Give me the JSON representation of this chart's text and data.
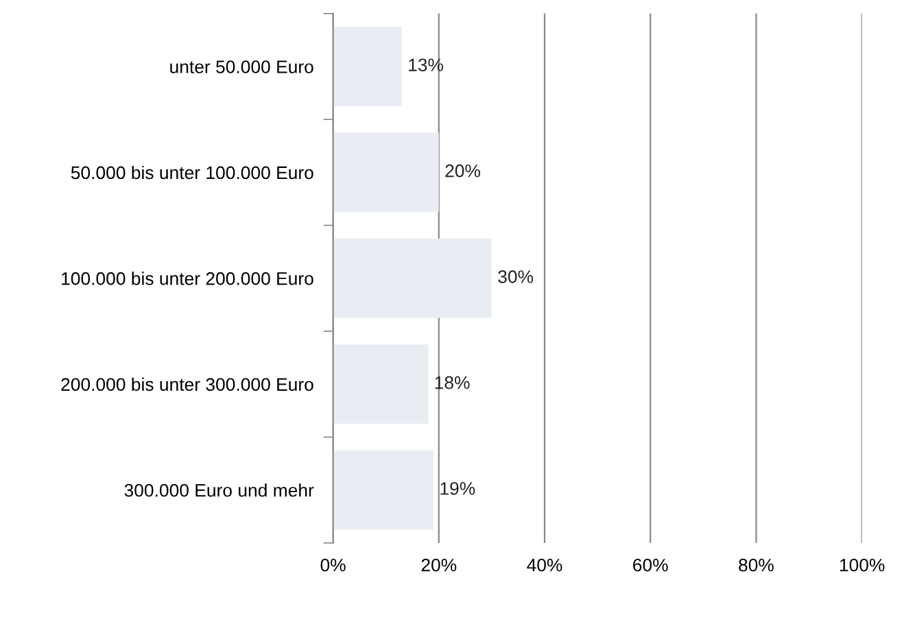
{
  "chart_data": {
    "type": "bar",
    "orientation": "horizontal",
    "categories": [
      "unter 50.000 Euro",
      "50.000 bis unter 100.000 Euro",
      "100.000 bis unter 200.000 Euro",
      "200.000 bis unter 300.000 Euro",
      "300.000 Euro und mehr"
    ],
    "values": [
      13,
      20,
      30,
      18,
      19
    ],
    "value_labels": [
      "13%",
      "20%",
      "30%",
      "18%",
      "19%"
    ],
    "color": "#e9edf3",
    "xlim": [
      0,
      100
    ],
    "xticks": [
      {
        "value": 0,
        "label": "0%"
      },
      {
        "value": 20,
        "label": "20%"
      },
      {
        "value": 40,
        "label": "40%"
      },
      {
        "value": 60,
        "label": "60%"
      },
      {
        "value": 80,
        "label": "80%"
      },
      {
        "value": 100,
        "label": "100%"
      }
    ],
    "grid": "x",
    "legend": false
  }
}
